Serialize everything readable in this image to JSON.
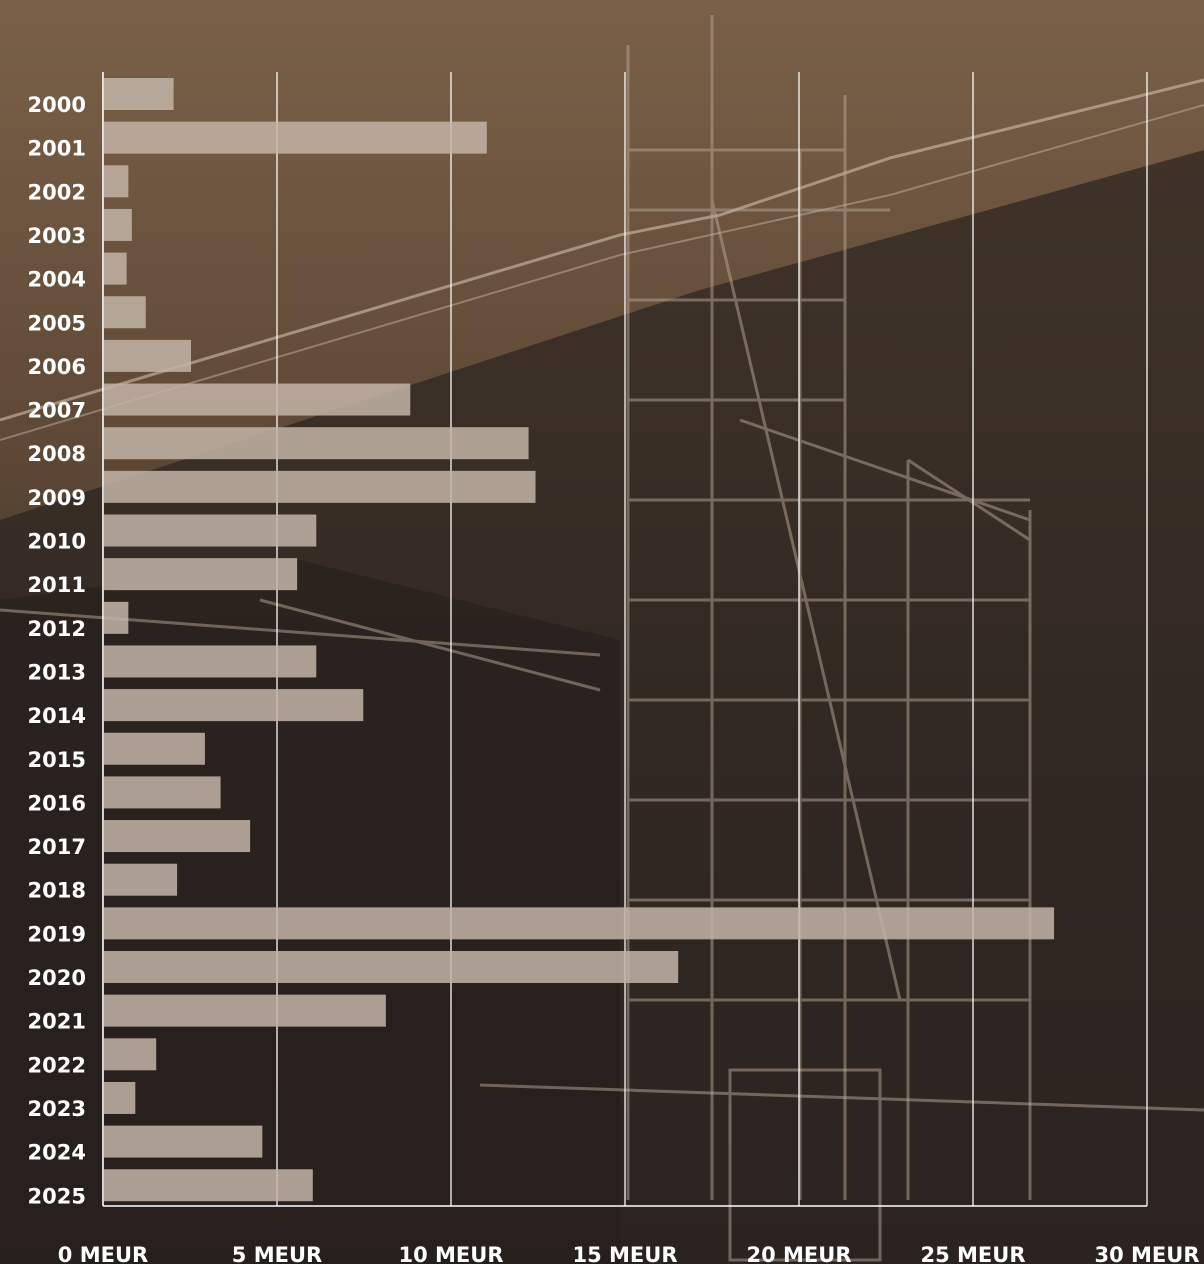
{
  "colors": {
    "bar": "#c2b3a6",
    "grid": "#ffffff",
    "text": "#ffffff",
    "background": "#5a4534"
  },
  "background_image": "sepia construction site with scaffolding tower",
  "chart_data": {
    "type": "bar",
    "orientation": "horizontal",
    "title": "",
    "xlabel": "",
    "ylabel": "",
    "xlim": [
      0,
      30
    ],
    "grid": true,
    "x_ticks": [
      {
        "value": 0,
        "label": "0 MEUR"
      },
      {
        "value": 5,
        "label": "5 MEUR"
      },
      {
        "value": 10,
        "label": "10 MEUR"
      },
      {
        "value": 15,
        "label": "15 MEUR"
      },
      {
        "value": 20,
        "label": "20 MEUR"
      },
      {
        "value": 25,
        "label": "25 MEUR"
      },
      {
        "value": 30,
        "label": "30 MEUR"
      }
    ],
    "categories": [
      "2000",
      "2001",
      "2002",
      "2003",
      "2004",
      "2005",
      "2006",
      "2007",
      "2008",
      "2009",
      "2010",
      "2011",
      "2012",
      "2013",
      "2014",
      "2015",
      "2016",
      "2017",
      "2018",
      "2019",
      "2020",
      "2021",
      "2022",
      "2023",
      "2024",
      "2025"
    ],
    "values": [
      2.0,
      11.0,
      0.7,
      0.8,
      0.65,
      1.2,
      2.5,
      8.8,
      12.2,
      12.4,
      6.1,
      5.55,
      0.7,
      6.1,
      7.45,
      2.9,
      3.35,
      4.2,
      2.1,
      27.3,
      16.5,
      8.1,
      1.5,
      0.9,
      4.55,
      6.0
    ]
  }
}
